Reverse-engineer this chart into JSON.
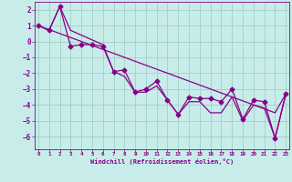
{
  "xlabel": "Windchill (Refroidissement éolien,°C)",
  "x_values": [
    0,
    1,
    2,
    3,
    4,
    5,
    6,
    7,
    8,
    9,
    10,
    11,
    12,
    13,
    14,
    15,
    16,
    17,
    18,
    19,
    20,
    21,
    22,
    23
  ],
  "line_data": [
    1.0,
    0.7,
    2.2,
    -0.3,
    -0.2,
    -0.2,
    -0.3,
    -1.9,
    -1.8,
    -3.2,
    -3.0,
    -2.5,
    -3.7,
    -4.6,
    -3.5,
    -3.6,
    -3.6,
    -3.8,
    -3.0,
    -4.9,
    -3.7,
    -3.8,
    -6.1,
    -3.3
  ],
  "upper_line": [
    1.0,
    0.75,
    0.5,
    0.25,
    0.0,
    -0.25,
    -0.5,
    -0.75,
    -1.0,
    -1.25,
    -1.5,
    -1.75,
    -2.0,
    -2.25,
    -2.5,
    -2.75,
    -3.0,
    -3.25,
    -3.5,
    -3.75,
    -4.0,
    -4.25,
    -4.5,
    -3.3
  ],
  "lower_line": [
    1.0,
    0.7,
    2.2,
    0.7,
    0.4,
    0.1,
    -0.2,
    -1.9,
    -2.2,
    -3.2,
    -3.2,
    -2.8,
    -3.7,
    -4.6,
    -3.8,
    -3.8,
    -4.5,
    -4.5,
    -3.5,
    -5.0,
    -4.0,
    -4.2,
    -6.1,
    -3.3
  ],
  "line_color": "#880088",
  "bg_color": "#c8ecea",
  "grid_color": "#99ccbb",
  "ylim": [
    -6.8,
    2.5
  ],
  "yticks": [
    2,
    1,
    0,
    -1,
    -2,
    -3,
    -4,
    -5,
    -6
  ],
  "xlim": [
    -0.3,
    23.3
  ],
  "marker": "D",
  "markersize": 2.5,
  "linewidth": 0.9
}
